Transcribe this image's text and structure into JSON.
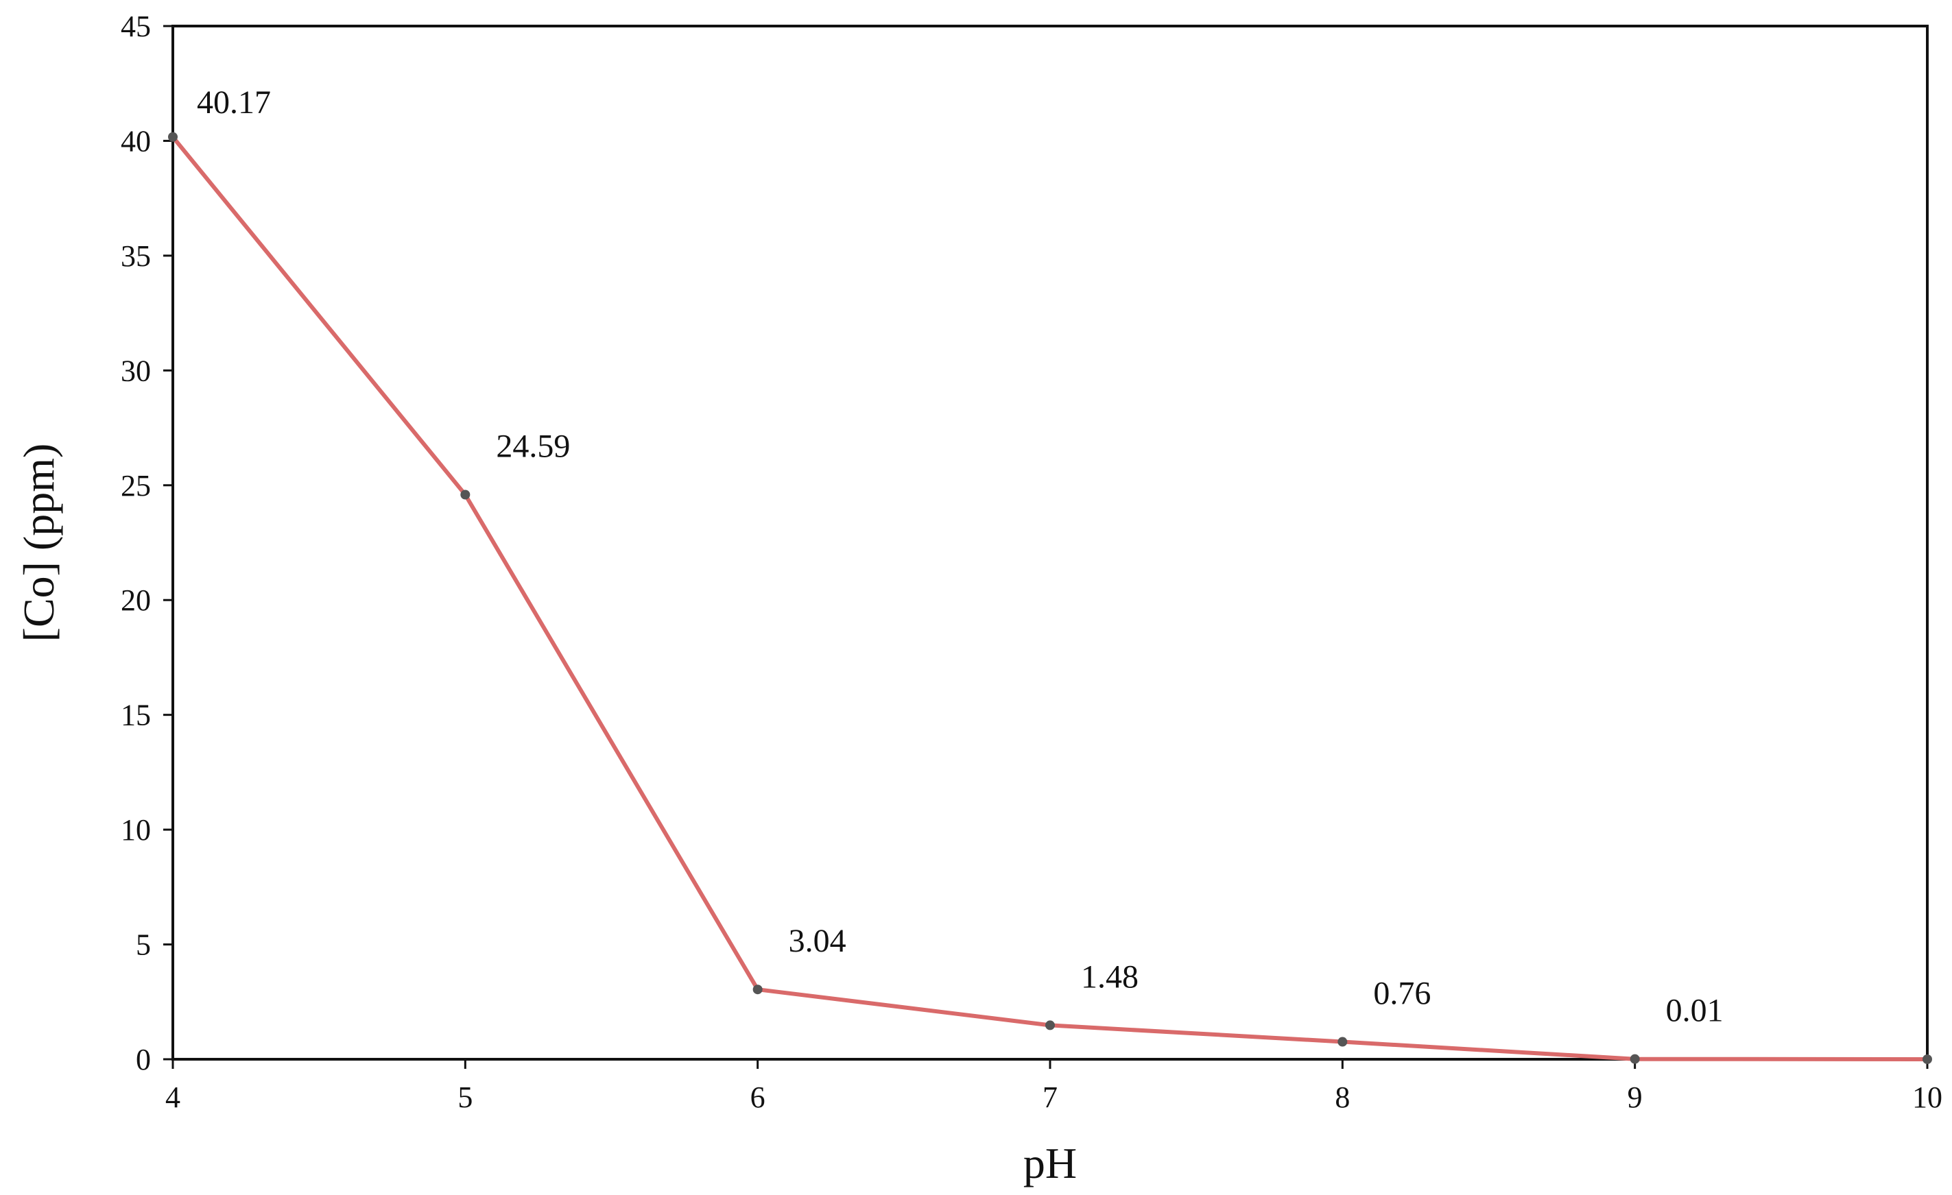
{
  "chart_data": {
    "type": "line",
    "title": "",
    "xlabel": "pH",
    "ylabel": "[Co] (ppm)",
    "xlim": [
      4,
      10
    ],
    "ylim": [
      0,
      45
    ],
    "x_ticks": [
      "4",
      "5",
      "6",
      "7",
      "8",
      "9",
      "10"
    ],
    "y_ticks": [
      "0",
      "5",
      "10",
      "15",
      "20",
      "25",
      "30",
      "35",
      "40",
      "45"
    ],
    "grid": false,
    "legend": "none",
    "series": [
      {
        "x": [
          4,
          5,
          6,
          7,
          8,
          9,
          10
        ],
        "values": [
          40.17,
          24.59,
          3.04,
          1.48,
          0.76,
          0.01,
          0
        ],
        "data_labels": [
          "40.17",
          "24.59",
          "3.04",
          "1.48",
          "0.76",
          "0.01",
          ""
        ],
        "line_color": "#d96a6a",
        "marker_color": "#555555"
      }
    ]
  }
}
